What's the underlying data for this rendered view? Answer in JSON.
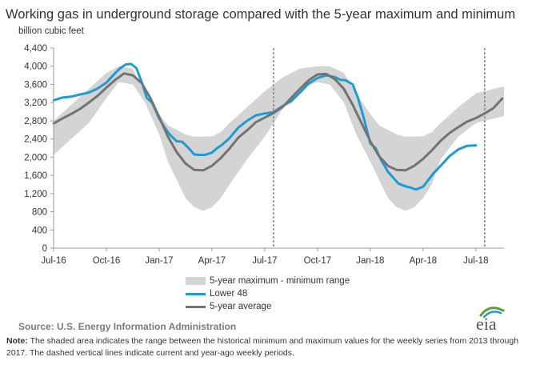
{
  "header": {
    "title": "Working gas in underground  storage compared with the 5-year maximum and minimum",
    "unit": "billion cubic feet"
  },
  "legend": {
    "band": "5-year maximum - minimum range",
    "lower48": "Lower 48",
    "avg": "5-year average"
  },
  "footer": {
    "source": "Source:  U.S. Energy Information Administration",
    "note_label": "Note:",
    "note_text": " The shaded area indicates the range between the historical minimum and maximum values for the weekly series from 2013 through 2017. The dashed vertical lines indicate current and year-ago weekly periods.",
    "logo_text": "eia"
  },
  "colors": {
    "lower48": "#1f9bd1",
    "avg": "#737373",
    "band": "#d4d4d4",
    "axis": "#999999",
    "logo_green": "#5aa02c",
    "logo_blue": "#1f9bd1"
  },
  "chart_data": {
    "type": "line",
    "x_unit": "month",
    "x_start": "Jul-16",
    "xlim": [
      0,
      25.6
    ],
    "ylim": [
      0,
      4400
    ],
    "yticks": [
      0,
      400,
      800,
      1200,
      1600,
      2000,
      2400,
      2800,
      3200,
      3600,
      4000,
      4400
    ],
    "ytick_labels": [
      "0",
      "400",
      "800",
      "1,200",
      "1,600",
      "2,000",
      "2,400",
      "2,800",
      "3,200",
      "3,600",
      "4,000",
      "4,400"
    ],
    "xticks": [
      0,
      3,
      6,
      9,
      12,
      15,
      18,
      21,
      24
    ],
    "xtick_labels": [
      "Jul-16",
      "Oct-16",
      "Jan-17",
      "Apr-17",
      "Jul-17",
      "Oct-17",
      "Jan-18",
      "Apr-18",
      "Jul-18"
    ],
    "grid": false,
    "dashed_vlines_x": [
      12.5,
      24.5
    ],
    "band": {
      "name": "5-year maximum - minimum range",
      "x": [
        0,
        1,
        2,
        3,
        3.7,
        4.5,
        5.2,
        6,
        6.5,
        7,
        7.5,
        8,
        8.5,
        9,
        9.5,
        10,
        11,
        12,
        13,
        14,
        15,
        15.7,
        16.5,
        17.2,
        18,
        18.5,
        19,
        19.5,
        20,
        20.5,
        21,
        21.5,
        22,
        23,
        24,
        25,
        25.6
      ],
      "max": [
        2800,
        3150,
        3500,
        3850,
        4000,
        3950,
        3400,
        2950,
        2700,
        2600,
        2500,
        2450,
        2450,
        2460,
        2550,
        2750,
        3100,
        3450,
        3750,
        3950,
        4000,
        4000,
        3850,
        3400,
        2950,
        2700,
        2600,
        2500,
        2450,
        2450,
        2460,
        2550,
        2750,
        3100,
        3400,
        3500,
        3560
      ],
      "min": [
        2050,
        2400,
        2750,
        3300,
        3650,
        3600,
        3200,
        2500,
        1900,
        1500,
        1100,
        900,
        820,
        900,
        1100,
        1400,
        1950,
        2450,
        3050,
        3500,
        3650,
        3600,
        3200,
        2500,
        1900,
        1500,
        1100,
        900,
        820,
        900,
        1100,
        1400,
        1950,
        2450,
        2750,
        2850,
        2900
      ]
    },
    "series": [
      {
        "name": "Lower 48",
        "x": [
          0,
          0.5,
          1,
          1.5,
          2,
          2.5,
          3,
          3.5,
          3.8,
          4.1,
          4.4,
          4.7,
          5,
          5.3,
          5.6,
          6,
          6.3,
          6.6,
          7,
          7.3,
          7.6,
          8,
          8.3,
          8.6,
          9,
          9.3,
          9.6,
          10,
          10.5,
          11,
          11.5,
          12,
          12.5,
          13,
          13.5,
          14,
          14.5,
          15,
          15.5,
          16,
          16.3,
          16.6,
          17,
          17.3,
          17.6,
          18,
          18.3,
          18.6,
          19,
          19.3,
          19.6,
          20,
          20.3,
          20.6,
          21,
          21.3,
          21.6,
          22,
          22.5,
          23,
          23.5,
          24
        ],
        "values": [
          3250,
          3310,
          3330,
          3380,
          3420,
          3510,
          3640,
          3850,
          3960,
          4040,
          4050,
          3960,
          3660,
          3300,
          3200,
          2850,
          2660,
          2500,
          2350,
          2340,
          2230,
          2060,
          2050,
          2050,
          2100,
          2200,
          2280,
          2420,
          2650,
          2800,
          2920,
          2960,
          2990,
          3120,
          3230,
          3420,
          3620,
          3740,
          3800,
          3760,
          3700,
          3690,
          3600,
          3300,
          2900,
          2300,
          2200,
          1950,
          1680,
          1550,
          1420,
          1360,
          1330,
          1290,
          1350,
          1500,
          1650,
          1810,
          2020,
          2170,
          2250,
          2260
        ]
      },
      {
        "name": "5-year average",
        "x": [
          0,
          0.5,
          1,
          1.5,
          2,
          2.5,
          3,
          3.5,
          4,
          4.5,
          5,
          5.5,
          6,
          6.5,
          7,
          7.5,
          8,
          8.5,
          9,
          9.5,
          10,
          10.5,
          11,
          11.5,
          12,
          12.5,
          13,
          13.5,
          14,
          14.5,
          15,
          15.5,
          16,
          16.5,
          17,
          17.5,
          18,
          18.5,
          19,
          19.5,
          20,
          20.5,
          21,
          21.5,
          22,
          22.5,
          23,
          23.5,
          24,
          24.5,
          25,
          25.5
        ],
        "values": [
          2740,
          2850,
          2950,
          3060,
          3200,
          3350,
          3530,
          3700,
          3840,
          3800,
          3630,
          3300,
          2880,
          2450,
          2110,
          1860,
          1720,
          1710,
          1810,
          1980,
          2190,
          2430,
          2590,
          2770,
          2870,
          2970,
          3100,
          3300,
          3500,
          3690,
          3820,
          3830,
          3710,
          3500,
          3150,
          2750,
          2350,
          2020,
          1810,
          1720,
          1710,
          1810,
          1960,
          2150,
          2360,
          2530,
          2660,
          2780,
          2860,
          2960,
          3080,
          3290
        ]
      }
    ]
  }
}
